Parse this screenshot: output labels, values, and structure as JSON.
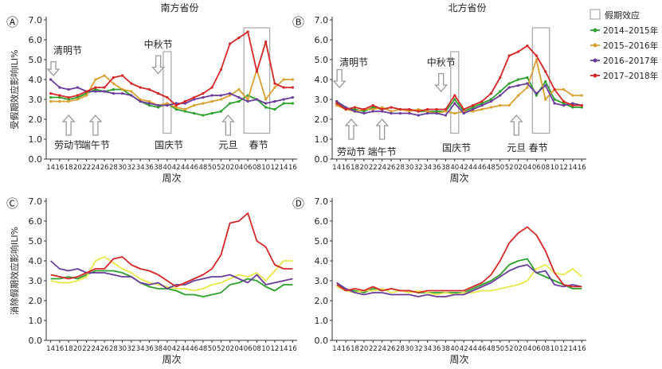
{
  "figure": {
    "legend_title": "假期效应",
    "common_xlabel": "周次",
    "ylabel_top": "受假期效应影响ILI%",
    "ylabel_bottom": "消除假期效应影响ILI%"
  },
  "chart_data": [
    {
      "panel": "Ⓐ",
      "title": "南方省份",
      "type": "line",
      "xlabel": "周次",
      "ylabel": "受假期效应影响ILI%",
      "ylim": [
        0,
        7
      ],
      "yticks": [
        "0.0",
        "1.0",
        "2.0",
        "3.0",
        "4.0",
        "5.0",
        "6.0",
        "7.0"
      ],
      "xticks": [
        "14",
        "16",
        "18",
        "20",
        "22",
        "24",
        "26",
        "28",
        "30",
        "32",
        "34",
        "36",
        "38",
        "40",
        "42",
        "44",
        "46",
        "48",
        "50",
        "52",
        "02",
        "04",
        "06",
        "08",
        "10",
        "12",
        "14",
        "16"
      ],
      "x": [
        "14",
        "16",
        "18",
        "20",
        "22",
        "24",
        "26",
        "28",
        "30",
        "32",
        "34",
        "36",
        "38",
        "40",
        "42",
        "44",
        "46",
        "48",
        "50",
        "52",
        "02",
        "04",
        "06",
        "08",
        "10",
        "12",
        "14",
        "16"
      ],
      "series": [
        {
          "name": "2014–2015年",
          "color": "#2ca02c",
          "values": [
            3.1,
            3.1,
            3.0,
            3.1,
            3.3,
            3.5,
            3.4,
            3.5,
            3.5,
            3.2,
            2.9,
            2.7,
            2.6,
            2.8,
            2.5,
            2.4,
            2.3,
            2.2,
            2.3,
            2.4,
            2.8,
            2.9,
            3.2,
            3.0,
            2.6,
            2.5,
            2.8,
            2.8
          ]
        },
        {
          "name": "2015–2016年",
          "color": "#d9a030",
          "values": [
            2.9,
            2.9,
            2.9,
            3.0,
            3.2,
            4.0,
            4.2,
            3.8,
            3.5,
            3.4,
            3.0,
            2.9,
            2.7,
            2.8,
            2.6,
            2.5,
            2.7,
            2.8,
            2.9,
            3.0,
            3.2,
            3.5,
            3.0,
            4.5,
            3.0,
            3.6,
            4.0,
            4.0
          ]
        },
        {
          "name": "2016–2017年",
          "color": "#6a3d9a",
          "values": [
            4.0,
            3.6,
            3.5,
            3.6,
            3.4,
            3.4,
            3.4,
            3.3,
            3.3,
            3.2,
            2.9,
            2.8,
            2.7,
            2.7,
            2.8,
            2.8,
            3.0,
            3.1,
            3.2,
            3.2,
            3.3,
            3.1,
            2.9,
            3.0,
            2.8,
            2.9,
            3.0,
            3.1
          ]
        },
        {
          "name": "2017–2018年",
          "color": "#d62728",
          "values": [
            3.3,
            3.2,
            3.1,
            3.2,
            3.4,
            3.6,
            3.6,
            4.1,
            4.2,
            3.8,
            3.6,
            3.5,
            3.3,
            3.1,
            2.7,
            2.9,
            3.1,
            3.3,
            3.6,
            4.5,
            5.8,
            6.1,
            6.4,
            4.4,
            5.9,
            3.8,
            3.6,
            3.6
          ]
        }
      ],
      "holiday_boxes": [
        {
          "name": "国庆节",
          "from": "40",
          "to": "40"
        },
        {
          "name": "春节",
          "from": "06",
          "to": "10"
        }
      ],
      "annotations": [
        {
          "text": "清明节",
          "arrow": "down"
        },
        {
          "text": "中秋节",
          "arrow": "down"
        },
        {
          "text": "劳动节",
          "arrow": "up"
        },
        {
          "text": "端午节",
          "arrow": "up"
        },
        {
          "text": "国庆节",
          "arrow": "none"
        },
        {
          "text": "元旦",
          "arrow": "up"
        },
        {
          "text": "春节",
          "arrow": "none"
        }
      ]
    },
    {
      "panel": "Ⓑ",
      "title": "北方省份",
      "type": "line",
      "xlabel": "周次",
      "ylabel": "",
      "ylim": [
        0,
        7
      ],
      "yticks": [
        "0.0",
        "1.0",
        "2.0",
        "3.0",
        "4.0",
        "5.0",
        "6.0",
        "7.0"
      ],
      "xticks": [
        "14",
        "16",
        "18",
        "20",
        "22",
        "24",
        "26",
        "28",
        "30",
        "32",
        "34",
        "36",
        "38",
        "40",
        "42",
        "44",
        "46",
        "48",
        "50",
        "52",
        "02",
        "04",
        "06",
        "08",
        "10",
        "12",
        "14",
        "16"
      ],
      "x": [
        "14",
        "16",
        "18",
        "20",
        "22",
        "24",
        "26",
        "28",
        "30",
        "32",
        "34",
        "36",
        "38",
        "40",
        "42",
        "44",
        "46",
        "48",
        "50",
        "52",
        "02",
        "04",
        "06",
        "08",
        "10",
        "12",
        "14",
        "16"
      ],
      "series": [
        {
          "name": "2014–2015年",
          "color": "#2ca02c",
          "values": [
            2.9,
            2.5,
            2.5,
            2.4,
            2.6,
            2.5,
            2.6,
            2.5,
            2.5,
            2.4,
            2.4,
            2.4,
            2.4,
            3.0,
            2.4,
            2.6,
            2.8,
            3.0,
            3.4,
            3.8,
            4.0,
            4.1,
            3.2,
            3.9,
            3.0,
            2.8,
            2.6,
            2.6
          ]
        },
        {
          "name": "2015–2016年",
          "color": "#d9a030",
          "values": [
            2.7,
            2.5,
            2.4,
            2.5,
            2.5,
            2.6,
            2.4,
            2.5,
            2.4,
            2.5,
            2.4,
            2.3,
            2.4,
            2.3,
            2.4,
            2.4,
            2.5,
            2.6,
            2.7,
            2.7,
            3.2,
            3.6,
            5.0,
            3.0,
            3.5,
            3.5,
            3.2,
            3.2
          ]
        },
        {
          "name": "2016–2017年",
          "color": "#6a3d9a",
          "values": [
            2.9,
            2.6,
            2.4,
            2.3,
            2.4,
            2.4,
            2.3,
            2.3,
            2.3,
            2.2,
            2.3,
            2.3,
            2.2,
            2.8,
            2.3,
            2.5,
            2.7,
            2.9,
            3.2,
            3.6,
            3.7,
            3.8,
            3.3,
            3.7,
            2.8,
            2.7,
            2.8,
            2.7
          ]
        },
        {
          "name": "2017–2018年",
          "color": "#d62728",
          "values": [
            2.8,
            2.5,
            2.6,
            2.5,
            2.7,
            2.5,
            2.6,
            2.5,
            2.5,
            2.4,
            2.5,
            2.5,
            2.5,
            3.2,
            2.5,
            2.7,
            2.9,
            3.3,
            4.1,
            5.2,
            5.4,
            5.7,
            5.2,
            4.4,
            3.5,
            2.9,
            2.7,
            2.7
          ]
        }
      ],
      "holiday_boxes": [
        {
          "name": "国庆节",
          "from": "40",
          "to": "40"
        },
        {
          "name": "春节",
          "from": "06",
          "to": "08"
        }
      ],
      "annotations": [
        {
          "text": "清明节",
          "arrow": "down"
        },
        {
          "text": "中秋节",
          "arrow": "down"
        },
        {
          "text": "劳动节",
          "arrow": "up"
        },
        {
          "text": "端午节",
          "arrow": "up"
        },
        {
          "text": "国庆节",
          "arrow": "none"
        },
        {
          "text": "元旦",
          "arrow": "up"
        },
        {
          "text": "春节",
          "arrow": "none"
        }
      ]
    },
    {
      "panel": "Ⓒ",
      "title": "",
      "type": "line",
      "xlabel": "周次",
      "ylabel": "消除假期效应影响ILI%",
      "ylim": [
        0,
        7
      ],
      "yticks": [
        "0.0",
        "1.0",
        "2.0",
        "3.0",
        "4.0",
        "5.0",
        "6.0",
        "7.0"
      ],
      "xticks": [
        "14",
        "16",
        "18",
        "20",
        "22",
        "24",
        "26",
        "28",
        "30",
        "32",
        "34",
        "36",
        "38",
        "40",
        "42",
        "44",
        "46",
        "48",
        "50",
        "52",
        "02",
        "04",
        "06",
        "08",
        "10",
        "12",
        "14",
        "16"
      ],
      "x": [
        "14",
        "16",
        "18",
        "20",
        "22",
        "24",
        "26",
        "28",
        "30",
        "32",
        "34",
        "36",
        "38",
        "40",
        "42",
        "44",
        "46",
        "48",
        "50",
        "52",
        "02",
        "04",
        "06",
        "08",
        "10",
        "12",
        "14",
        "16"
      ],
      "series": [
        {
          "name": "2014–2015年",
          "color": "#2ca02c",
          "values": [
            3.1,
            3.1,
            3.2,
            3.1,
            3.3,
            3.5,
            3.5,
            3.5,
            3.4,
            3.2,
            2.9,
            2.7,
            2.6,
            2.6,
            2.5,
            2.3,
            2.3,
            2.2,
            2.3,
            2.4,
            2.8,
            2.9,
            3.1,
            3.0,
            2.7,
            2.5,
            2.8,
            2.8
          ]
        },
        {
          "name": "2015–2016年",
          "color": "#e8e84a",
          "values": [
            3.0,
            2.9,
            2.9,
            3.0,
            3.2,
            4.0,
            4.2,
            3.9,
            3.6,
            3.4,
            3.1,
            2.9,
            2.8,
            2.7,
            2.6,
            2.6,
            2.5,
            2.6,
            2.8,
            2.9,
            3.1,
            3.3,
            3.2,
            3.4,
            3.0,
            3.5,
            4.0,
            4.0
          ]
        },
        {
          "name": "2016–2017年",
          "color": "#6a3d9a",
          "values": [
            4.0,
            3.6,
            3.5,
            3.6,
            3.4,
            3.4,
            3.4,
            3.3,
            3.2,
            3.2,
            2.9,
            2.8,
            2.9,
            2.6,
            2.8,
            2.8,
            3.0,
            3.1,
            3.2,
            3.2,
            3.3,
            3.1,
            2.9,
            3.3,
            2.8,
            2.9,
            3.0,
            3.1
          ]
        },
        {
          "name": "2017–2018年",
          "color": "#d62728",
          "values": [
            3.3,
            3.2,
            3.1,
            3.2,
            3.4,
            3.6,
            3.6,
            4.1,
            4.2,
            3.8,
            3.6,
            3.5,
            3.3,
            3.0,
            2.7,
            2.9,
            3.1,
            3.3,
            3.6,
            4.3,
            5.9,
            6.0,
            6.4,
            5.0,
            4.7,
            3.8,
            3.6,
            3.6
          ]
        }
      ]
    },
    {
      "panel": "Ⓓ",
      "title": "",
      "type": "line",
      "xlabel": "周次",
      "ylabel": "",
      "ylim": [
        0,
        7
      ],
      "yticks": [
        "0.0",
        "1.0",
        "2.0",
        "3.0",
        "4.0",
        "5.0",
        "6.0",
        "7.0"
      ],
      "xticks": [
        "14",
        "16",
        "18",
        "20",
        "22",
        "24",
        "26",
        "28",
        "30",
        "32",
        "34",
        "36",
        "38",
        "40",
        "42",
        "44",
        "46",
        "48",
        "50",
        "52",
        "02",
        "04",
        "06",
        "08",
        "10",
        "12",
        "14",
        "16"
      ],
      "x": [
        "14",
        "16",
        "18",
        "20",
        "22",
        "24",
        "26",
        "28",
        "30",
        "32",
        "34",
        "36",
        "38",
        "40",
        "42",
        "44",
        "46",
        "48",
        "50",
        "52",
        "02",
        "04",
        "06",
        "08",
        "10",
        "12",
        "14",
        "16"
      ],
      "series": [
        {
          "name": "2014–2015年",
          "color": "#2ca02c",
          "values": [
            2.9,
            2.5,
            2.5,
            2.4,
            2.6,
            2.5,
            2.6,
            2.5,
            2.5,
            2.4,
            2.4,
            2.4,
            2.4,
            2.4,
            2.4,
            2.6,
            2.8,
            3.0,
            3.3,
            3.8,
            4.0,
            4.1,
            3.4,
            3.2,
            3.0,
            2.8,
            2.6,
            2.6
          ]
        },
        {
          "name": "2015–2016年",
          "color": "#e8e84a",
          "values": [
            2.7,
            2.5,
            2.4,
            2.5,
            2.5,
            2.6,
            2.4,
            2.5,
            2.4,
            2.5,
            2.4,
            2.3,
            2.4,
            2.3,
            2.4,
            2.4,
            2.5,
            2.5,
            2.6,
            2.7,
            2.8,
            3.0,
            3.6,
            3.8,
            3.4,
            3.3,
            3.6,
            3.2
          ]
        },
        {
          "name": "2016–2017年",
          "color": "#6a3d9a",
          "values": [
            2.9,
            2.6,
            2.4,
            2.3,
            2.4,
            2.4,
            2.3,
            2.3,
            2.3,
            2.2,
            2.3,
            2.2,
            2.2,
            2.3,
            2.3,
            2.5,
            2.7,
            2.9,
            3.2,
            3.5,
            3.7,
            3.8,
            3.4,
            3.5,
            2.8,
            2.7,
            2.8,
            2.7
          ]
        },
        {
          "name": "2017–2018年",
          "color": "#d62728",
          "values": [
            2.8,
            2.5,
            2.6,
            2.5,
            2.7,
            2.5,
            2.6,
            2.5,
            2.5,
            2.4,
            2.5,
            2.5,
            2.5,
            2.5,
            2.5,
            2.7,
            2.9,
            3.3,
            4.0,
            4.9,
            5.4,
            5.7,
            5.3,
            4.5,
            3.4,
            2.8,
            2.7,
            2.7
          ]
        }
      ]
    }
  ]
}
